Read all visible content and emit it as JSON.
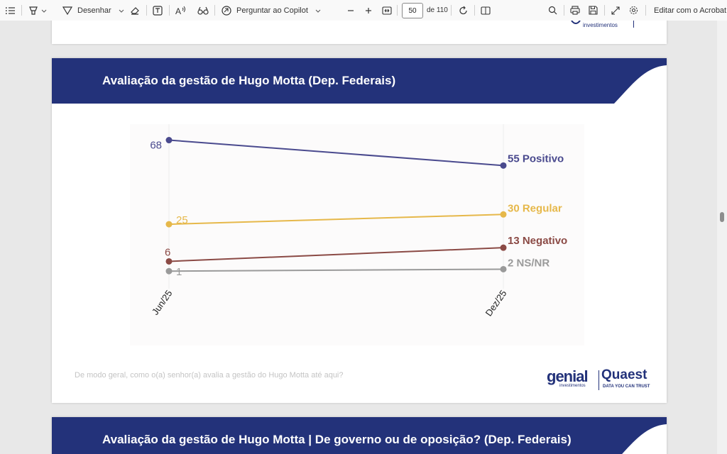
{
  "toolbar": {
    "draw_label": "Desenhar",
    "copilot_label": "Perguntar ao Copilot",
    "page_current": "50",
    "page_total": "de 110",
    "edit_acrobat": "Editar com o Acrobat"
  },
  "prev_page": {
    "logo_fragment": "investimentos"
  },
  "slide": {
    "title": "Avaliação da gestão de Hugo Motta (Dep. Federais)",
    "question": "De modo geral, como o(a) senhor(a) avalia a gestão do Hugo Motta até aqui?",
    "logo_genial": "genial",
    "logo_genial_sub": "investimentos",
    "logo_quaest": "Quaest",
    "logo_quaest_sub": "DATA YOU CAN TRUST"
  },
  "next_slide": {
    "title": "Avaliação da gestão de Hugo Motta | De governo ou de oposição? (Dep. Federais)"
  },
  "chart_data": {
    "type": "line",
    "x": [
      "Jun/25",
      "Dez/25"
    ],
    "series": [
      {
        "name": "Positivo",
        "values": [
          68,
          55
        ],
        "color": "#4a4a8e",
        "start_label": "68",
        "end_label": "55 Positivo"
      },
      {
        "name": "Regular",
        "values": [
          25,
          30
        ],
        "color": "#e6b84a",
        "start_label": "25",
        "end_label": "30 Regular"
      },
      {
        "name": "Negativo",
        "values": [
          6,
          13
        ],
        "color": "#8b4a45",
        "start_label": "6",
        "end_label": "13 Negativo"
      },
      {
        "name": "NS/NR",
        "values": [
          1,
          2
        ],
        "color": "#9a9a9a",
        "start_label": "1",
        "end_label": "2 NS/NR"
      }
    ],
    "ylim": [
      0,
      70
    ],
    "grid": false
  }
}
